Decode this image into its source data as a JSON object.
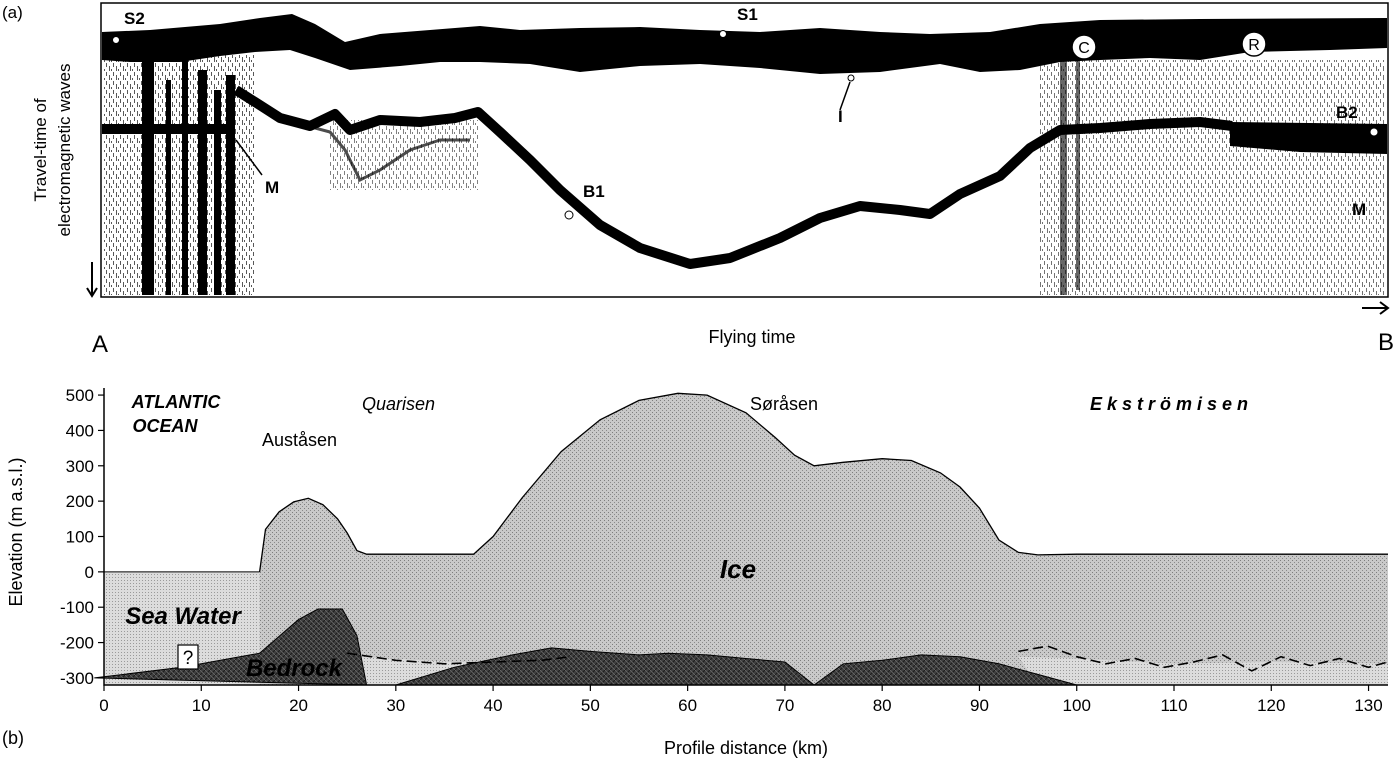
{
  "panel_a": {
    "label": "(a)",
    "ylabel_line1": "Travel-time of",
    "ylabel_line2": "electromagnetic waves",
    "xlabel": "Flying time",
    "start_label": "A",
    "end_label": "B",
    "annotations": {
      "s2": "S2",
      "s1": "S1",
      "c": "C",
      "r": "R",
      "i": "I",
      "b1": "B1",
      "b2": "B2",
      "m_left": "M",
      "m_right": "M"
    }
  },
  "panel_b": {
    "label": "(b)",
    "ylabel": "Elevation (m a.s.l.)",
    "xlabel": "Profile distance (km)",
    "regions": {
      "atlantic_line1": "ATLANTIC",
      "atlantic_line2": "OCEAN",
      "austasen": "Auståsen",
      "quarisen": "Quarisen",
      "sorasen": "Søråsen",
      "ekstromisen": "Ekströmisen",
      "ice": "Ice",
      "sea_water": "Sea Water",
      "bedrock": "Bedrock",
      "unknown": "?"
    }
  },
  "chart_data": {
    "type": "area",
    "xlabel": "Profile distance (km)",
    "ylabel": "Elevation (m a.s.l.)",
    "xlim": [
      0,
      132
    ],
    "ylim": [
      -320,
      520
    ],
    "x_ticks": [
      0,
      10,
      20,
      30,
      40,
      50,
      60,
      70,
      80,
      90,
      100,
      110,
      120,
      130
    ],
    "y_ticks": [
      500,
      400,
      300,
      200,
      100,
      0,
      -100,
      -200,
      -300
    ],
    "ice_surface": {
      "x": [
        16,
        16.6,
        18,
        19.5,
        21,
        22.5,
        24,
        25,
        26,
        27,
        30,
        35,
        38,
        40,
        43,
        47,
        51,
        55,
        59,
        62,
        66,
        69,
        71,
        73,
        76,
        80,
        83,
        86,
        88,
        90,
        92,
        94,
        96,
        100,
        110,
        120,
        132
      ],
      "y": [
        0,
        120,
        170,
        198,
        208,
        190,
        150,
        110,
        60,
        50,
        50,
        50,
        50,
        100,
        210,
        340,
        430,
        485,
        505,
        500,
        450,
        380,
        330,
        300,
        310,
        320,
        315,
        280,
        240,
        180,
        90,
        55,
        48,
        50,
        50,
        50,
        50
      ]
    },
    "ice_base_dashed": {
      "x": [
        25,
        30,
        35,
        40,
        45,
        48
      ],
      "y": [
        -230,
        -250,
        -260,
        -255,
        -250,
        -240
      ]
    },
    "ekstrom_base_dashed": {
      "x": [
        94,
        97,
        100,
        103,
        106,
        109,
        112,
        115,
        118,
        121,
        124,
        127,
        130,
        132
      ],
      "y": [
        -225,
        -210,
        -240,
        -260,
        -245,
        -270,
        -255,
        -235,
        -280,
        -240,
        -265,
        -245,
        -270,
        -255
      ]
    },
    "bedrock_ridges": [
      {
        "x": [
          -1,
          8,
          16,
          20,
          22,
          24.5,
          26,
          27
        ],
        "y": [
          -300,
          -270,
          -230,
          -135,
          -105,
          -105,
          -180,
          -320
        ]
      },
      {
        "x": [
          30,
          36,
          42,
          46,
          50,
          55,
          58,
          62,
          66,
          70,
          73
        ],
        "y": [
          -320,
          -270,
          -235,
          -215,
          -225,
          -235,
          -230,
          -235,
          -245,
          -255,
          -320
        ]
      },
      {
        "x": [
          73,
          76,
          80,
          84,
          88,
          92,
          96,
          100
        ],
        "y": [
          -320,
          -260,
          -250,
          -235,
          -240,
          -260,
          -290,
          -320
        ]
      }
    ]
  }
}
